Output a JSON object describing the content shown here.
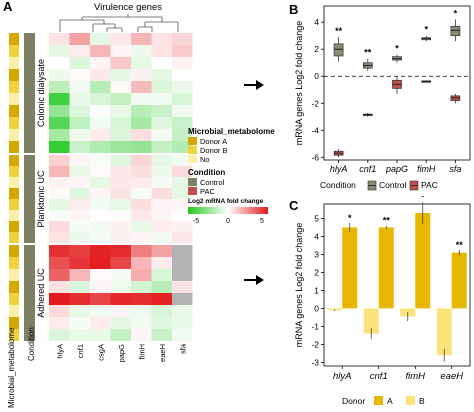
{
  "panelA": {
    "letter": "A",
    "top_title": "Virulence genes",
    "genes": [
      "hlyA",
      "cnf1",
      "csgA",
      "papG",
      "fimH",
      "eaeH",
      "sfa"
    ],
    "groups": [
      "Colonic dialysate",
      "Planktonic UC",
      "Adhered UC"
    ],
    "bottom_labels": [
      "Microbial_metabolome",
      "Condition"
    ],
    "legend": {
      "metabolome_title": "Microbial_metabolome",
      "metabolome_items": [
        {
          "label": "Donor A",
          "color": "#d4a800"
        },
        {
          "label": "Donor B",
          "color": "#f0d23c"
        },
        {
          "label": "No",
          "color": "#fbefaa"
        }
      ],
      "condition_title": "Condition",
      "condition_items": [
        {
          "label": "Control",
          "color": "#7f7f66"
        },
        {
          "label": "PAC",
          "color": "#c0504d"
        }
      ],
      "fold_title": "Log2 mRNA fold change",
      "fold_ticks": [
        "-5",
        "0",
        "5"
      ]
    },
    "heatmap_rows": [
      [
        0.6,
        2.0,
        -0.6,
        0.5,
        1.6,
        0.6,
        0.9
      ],
      [
        -0.6,
        0.4,
        1.6,
        0.2,
        -0.4,
        0.6,
        1.1
      ],
      [
        0.0,
        -0.8,
        0.2,
        1.2,
        -0.6,
        0.0,
        0.3
      ],
      [
        -0.4,
        0.1,
        0.5,
        -0.6,
        0.3,
        -0.6,
        0.0
      ],
      [
        -1.5,
        -0.3,
        -1.6,
        0.1,
        1.5,
        -0.8,
        -0.5
      ],
      [
        -4.2,
        -0.5,
        -0.9,
        -1.3,
        -0.3,
        -0.3,
        -0.9
      ],
      [
        -2.4,
        -0.8,
        -0.1,
        -0.5,
        -1.6,
        -1.2,
        -0.4
      ],
      [
        -3.8,
        -1.4,
        -0.3,
        -0.9,
        -2.0,
        -0.7,
        -1.2
      ],
      [
        -2.0,
        -0.4,
        0.4,
        -0.8,
        0.7,
        -0.3,
        -1.3
      ],
      [
        -4.5,
        -1.2,
        -1.8,
        -2.2,
        -2.4,
        -1.3,
        -1.7
      ],
      [
        1.0,
        0.2,
        -0.2,
        -0.7,
        0.9,
        -0.6,
        -0.3
      ],
      [
        1.6,
        -0.5,
        0.1,
        0.5,
        0.7,
        -0.4,
        0.8
      ],
      [
        0.3,
        0.2,
        -0.6,
        0.5,
        0.4,
        -0.2,
        -0.6
      ],
      [
        0.1,
        -0.7,
        0.2,
        0.6,
        -0.2,
        0.7,
        -0.6
      ],
      [
        -0.6,
        0.4,
        -0.3,
        -0.5,
        0.7,
        0.2,
        0.2
      ],
      [
        -0.2,
        0.2,
        0.0,
        -0.1,
        0.5,
        0.2,
        0.0
      ],
      [
        0.8,
        -0.2,
        -0.3,
        0.3,
        -0.5,
        0.4,
        0.3
      ],
      [
        0.6,
        -0.4,
        -0.2,
        0.3,
        0.2,
        -0.3,
        0.5
      ],
      [
        4.5,
        4.2,
        4.8,
        4.6,
        2.8,
        2.0,
        null
      ],
      [
        3.8,
        4.4,
        4.9,
        4.0,
        1.6,
        0.4,
        null
      ],
      [
        3.4,
        1.6,
        0.1,
        -0.2,
        1.8,
        -0.9,
        null
      ],
      [
        0.6,
        -0.8,
        0.2,
        -0.4,
        -1.0,
        -1.6,
        0.6
      ],
      [
        5.0,
        4.6,
        4.0,
        4.7,
        4.6,
        4.8,
        null
      ],
      [
        0.8,
        -0.5,
        -0.3,
        0.2,
        -0.4,
        -0.9,
        -0.5
      ],
      [
        0.4,
        -0.2,
        0.4,
        -0.6,
        -0.3,
        -0.7,
        -0.5
      ],
      [
        -0.8,
        -0.5,
        -0.5,
        -1.3,
        0.2,
        -1.2,
        -0.3
      ]
    ],
    "side_colors": [
      [
        "#d4a800",
        "#7f7f66"
      ],
      [
        "#f0d23c",
        "#7f7f66"
      ],
      [
        "#fbefaa",
        "#7f7f66"
      ],
      [
        "#d4a800",
        "#7f7f66"
      ],
      [
        "#f0d23c",
        "#7f7f66"
      ],
      [
        "#fbefaa",
        "#7f7f66"
      ],
      [
        "#d4a800",
        "#7f7f66"
      ],
      [
        "#f0d23c",
        "#7f7f66"
      ],
      [
        "#fbefaa",
        "#7f7f66"
      ],
      [
        "#d4a800",
        "#7f7f66"
      ],
      [
        "#d4a800",
        "#7f7f66"
      ],
      [
        "#f0d23c",
        "#7f7f66"
      ],
      [
        "#fbefaa",
        "#7f7f66"
      ],
      [
        "#d4a800",
        "#7f7f66"
      ],
      [
        "#f0d23c",
        "#7f7f66"
      ],
      [
        "#fbefaa",
        "#7f7f66"
      ],
      [
        "#d4a800",
        "#7f7f66"
      ],
      [
        "#f0d23c",
        "#7f7f66"
      ],
      [
        "#d4a800",
        "#7f7f66"
      ],
      [
        "#f0d23c",
        "#7f7f66"
      ],
      [
        "#fbefaa",
        "#7f7f66"
      ],
      [
        "#d4a800",
        "#7f7f66"
      ],
      [
        "#f0d23c",
        "#7f7f66"
      ],
      [
        "#fbefaa",
        "#7f7f66"
      ],
      [
        "#d4a800",
        "#7f7f66"
      ],
      [
        "#f0d23c",
        "#7f7f66"
      ]
    ]
  },
  "chart_data": [
    {
      "type": "box",
      "panel": "B",
      "categories": [
        "hlyA",
        "cnf1",
        "papG",
        "fimH",
        "sfa"
      ],
      "ylabel": "mRNA genes Log2 fold change",
      "ylim": [
        -6.2,
        5.2
      ],
      "yticks": [
        "-6",
        "-4",
        "-2",
        "0",
        "2",
        "4"
      ],
      "legend_title": "Condition",
      "legend_position": "bottom",
      "series": [
        {
          "name": "Control",
          "color": "#8c8a74",
          "boxes": [
            [
              1.1,
              1.5,
              2.0,
              2.4,
              2.9
            ],
            [
              0.4,
              0.6,
              0.8,
              1.0,
              1.3
            ],
            [
              1.0,
              1.2,
              1.3,
              1.45,
              1.6
            ],
            [
              2.6,
              2.7,
              2.8,
              2.85,
              3.0
            ],
            [
              2.6,
              3.0,
              3.4,
              3.7,
              4.2
            ]
          ]
        },
        {
          "name": "PAC",
          "color": "#c0504d",
          "boxes": [
            [
              -6.0,
              -5.85,
              -5.7,
              -5.55,
              -5.4
            ],
            [
              -3.0,
              -2.9,
              -2.85,
              -2.8,
              -2.7
            ],
            [
              -1.3,
              -0.9,
              -0.6,
              -0.3,
              0.0
            ],
            [
              -0.45,
              -0.42,
              -0.38,
              -0.34,
              -0.3
            ],
            [
              -2.0,
              -1.8,
              -1.6,
              -1.45,
              -1.3
            ]
          ]
        }
      ],
      "significance": [
        "**",
        "**",
        "*",
        "*",
        "*"
      ]
    },
    {
      "type": "bar",
      "panel": "C",
      "categories": [
        "hlyA",
        "cnf1",
        "fimH",
        "eaeH"
      ],
      "ylabel": "mRNA genes Log2 fold change",
      "ylim": [
        -3.2,
        5.8
      ],
      "yticks": [
        "-3",
        "-2",
        "-1",
        "0",
        "1",
        "2",
        "3",
        "4",
        "5"
      ],
      "legend_title": "Donor",
      "legend_position": "bottom",
      "series": [
        {
          "name": "A",
          "color": "#e8b800",
          "values": [
            4.5,
            4.5,
            5.3,
            3.1
          ],
          "errors": [
            0.25,
            0.1,
            0.6,
            0.15
          ]
        },
        {
          "name": "B",
          "color": "#fbe37a",
          "values": [
            -0.1,
            -1.4,
            -0.45,
            -2.6
          ],
          "errors": [
            0.05,
            0.3,
            0.25,
            0.35
          ]
        }
      ],
      "significance": [
        "*",
        "**",
        "*",
        "**"
      ]
    }
  ],
  "panelB": {
    "letter": "B"
  },
  "panelC": {
    "letter": "C"
  }
}
